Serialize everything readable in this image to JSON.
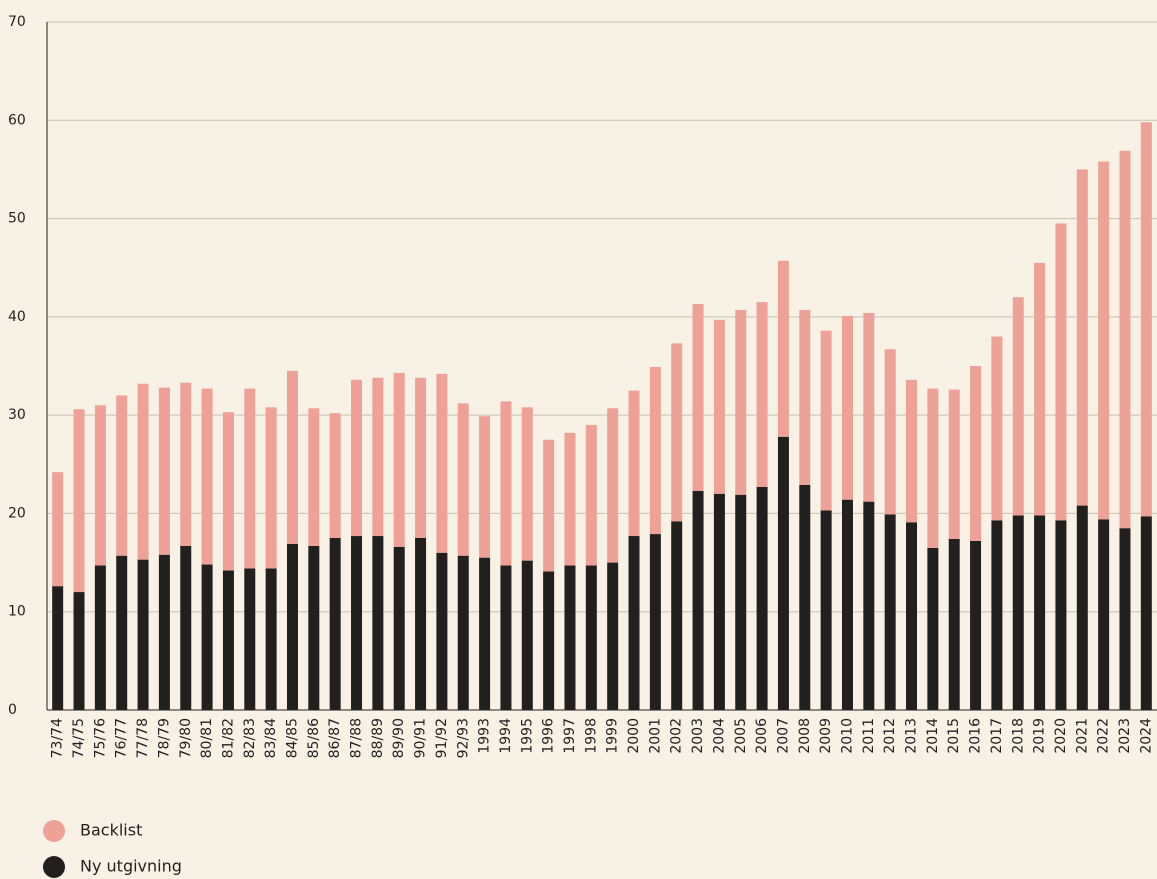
{
  "chart_data": {
    "type": "stacked_bar",
    "categories": [
      "73/74",
      "74/75",
      "75/76",
      "76/77",
      "77/78",
      "78/79",
      "79/80",
      "80/81",
      "81/82",
      "82/83",
      "83/84",
      "84/85",
      "85/86",
      "86/87",
      "87/88",
      "88/89",
      "89/90",
      "90/91",
      "91/92",
      "92/93",
      "1993",
      "1994",
      "1995",
      "1996",
      "1997",
      "1998",
      "1999",
      "2000",
      "2001",
      "2002",
      "2003",
      "2004",
      "2005",
      "2006",
      "2007",
      "2008",
      "2009",
      "2010",
      "2011",
      "2012",
      "2013",
      "2014",
      "2015",
      "2016",
      "2017",
      "2018",
      "2019",
      "2020",
      "2021",
      "2022",
      "2023",
      "2024"
    ],
    "series": [
      {
        "name": "Ny utgivning",
        "color": "#231f1e",
        "values": [
          12.6,
          12.0,
          14.7,
          15.7,
          15.3,
          15.8,
          16.7,
          14.8,
          14.2,
          14.4,
          14.4,
          16.9,
          16.7,
          17.5,
          17.7,
          17.7,
          16.6,
          17.5,
          16.0,
          15.7,
          15.5,
          14.7,
          15.2,
          14.1,
          14.7,
          14.7,
          15.0,
          17.7,
          17.9,
          19.2,
          22.3,
          22.0,
          21.9,
          22.7,
          27.8,
          22.9,
          20.3,
          21.4,
          21.2,
          19.9,
          19.1,
          16.5,
          17.4,
          17.2,
          19.3,
          19.8,
          19.8,
          19.3,
          20.8,
          19.4,
          18.5,
          19.7
        ]
      },
      {
        "name": "Backlist",
        "color": "#eda197",
        "values": [
          11.6,
          18.6,
          16.3,
          16.3,
          17.9,
          17.0,
          16.6,
          17.9,
          16.1,
          18.3,
          16.4,
          17.6,
          14.0,
          12.7,
          15.9,
          16.1,
          17.7,
          16.3,
          18.2,
          15.5,
          14.4,
          16.7,
          15.6,
          13.4,
          13.5,
          14.3,
          15.7,
          14.8,
          17.0,
          18.1,
          19.0,
          17.7,
          18.8,
          18.8,
          17.9,
          17.8,
          18.3,
          18.7,
          19.2,
          16.8,
          14.5,
          16.2,
          15.2,
          17.8,
          18.7,
          22.2,
          25.7,
          30.2,
          34.2,
          36.4,
          38.4,
          40.1
        ]
      }
    ],
    "ylim": [
      0,
      70
    ],
    "yticks": [
      0,
      10,
      20,
      30,
      40,
      50,
      60,
      70
    ],
    "grid": true
  }
}
